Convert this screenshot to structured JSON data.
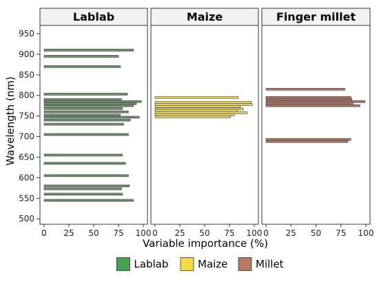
{
  "chart_data": {
    "type": "bar",
    "orientation": "horizontal",
    "xlabel": "Variable importance (%)",
    "ylabel": "Wavelength (nm)",
    "xlim": [
      0,
      100
    ],
    "ylim": [
      487,
      970
    ],
    "xticks": [
      0,
      25,
      50,
      75,
      100
    ],
    "yticks": [
      500,
      550,
      600,
      650,
      700,
      750,
      800,
      850,
      900,
      950
    ],
    "bar_height_nm": 5,
    "legend_position": "bottom",
    "legend": [
      {
        "label": "Lablab",
        "color": "#4aa052"
      },
      {
        "label": "Maize",
        "color": "#f3da45"
      },
      {
        "label": "Millet",
        "color": "#b47a62"
      }
    ],
    "panels": [
      {
        "title": "Lablab",
        "fill": "#6f8f6e",
        "bars": [
          {
            "x": 910,
            "y": 90
          },
          {
            "x": 895,
            "y": 75
          },
          {
            "x": 870,
            "y": 77
          },
          {
            "x": 803,
            "y": 84
          },
          {
            "x": 790,
            "y": 78
          },
          {
            "x": 785,
            "y": 98
          },
          {
            "x": 780,
            "y": 93
          },
          {
            "x": 775,
            "y": 90
          },
          {
            "x": 768,
            "y": 79
          },
          {
            "x": 760,
            "y": 85
          },
          {
            "x": 752,
            "y": 77
          },
          {
            "x": 747,
            "y": 96
          },
          {
            "x": 740,
            "y": 87
          },
          {
            "x": 730,
            "y": 80
          },
          {
            "x": 705,
            "y": 85
          },
          {
            "x": 655,
            "y": 79
          },
          {
            "x": 635,
            "y": 82
          },
          {
            "x": 605,
            "y": 85
          },
          {
            "x": 580,
            "y": 86
          },
          {
            "x": 573,
            "y": 78
          },
          {
            "x": 560,
            "y": 79
          },
          {
            "x": 545,
            "y": 90
          }
        ]
      },
      {
        "title": "Maize",
        "fill": "#e4d36a",
        "bars": [
          {
            "x": 795,
            "y": 84
          },
          {
            "x": 783,
            "y": 97
          },
          {
            "x": 778,
            "y": 98
          },
          {
            "x": 773,
            "y": 86
          },
          {
            "x": 767,
            "y": 89
          },
          {
            "x": 763,
            "y": 83
          },
          {
            "x": 758,
            "y": 93
          },
          {
            "x": 753,
            "y": 80
          },
          {
            "x": 748,
            "y": 76
          }
        ]
      },
      {
        "title": "Finger millet",
        "fill": "#a9796b",
        "bars": [
          {
            "x": 815,
            "y": 79
          },
          {
            "x": 795,
            "y": 85
          },
          {
            "x": 790,
            "y": 86
          },
          {
            "x": 785,
            "y": 99
          },
          {
            "x": 780,
            "y": 87
          },
          {
            "x": 775,
            "y": 94
          },
          {
            "x": 693,
            "y": 85
          },
          {
            "x": 688,
            "y": 82
          }
        ]
      }
    ]
  }
}
